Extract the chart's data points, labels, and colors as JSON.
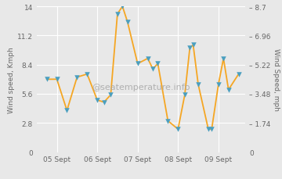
{
  "ylabel_left": "Wind speed, Kmph",
  "ylabel_right": "Wind Speed, mph",
  "watermark": "@seatemperature.info",
  "x_tick_labels": [
    "05 Sept",
    "06 Sept",
    "07 Sept",
    "08 Sept",
    "09 Sept"
  ],
  "x_tick_positions": [
    24,
    48,
    72,
    96,
    120
  ],
  "xlim": [
    12,
    136
  ],
  "points": [
    [
      18,
      7.0
    ],
    [
      24,
      7.0
    ],
    [
      30,
      4.0
    ],
    [
      36,
      7.2
    ],
    [
      42,
      7.5
    ],
    [
      48,
      5.0
    ],
    [
      52,
      4.8
    ],
    [
      56,
      5.5
    ],
    [
      60,
      13.3
    ],
    [
      63,
      14.0
    ],
    [
      66,
      12.5
    ],
    [
      72,
      8.5
    ],
    [
      78,
      9.0
    ],
    [
      81,
      8.0
    ],
    [
      84,
      8.5
    ],
    [
      90,
      3.0
    ],
    [
      96,
      2.2
    ],
    [
      100,
      5.5
    ],
    [
      103,
      10.0
    ],
    [
      105,
      10.3
    ],
    [
      108,
      6.5
    ],
    [
      114,
      2.2
    ],
    [
      116,
      2.2
    ],
    [
      120,
      6.5
    ],
    [
      123,
      9.0
    ],
    [
      126,
      6.0
    ],
    [
      132,
      7.5
    ]
  ],
  "line_color": "#f5a623",
  "marker_color": "#4a9fc0",
  "bg_color": "#e8e8e8",
  "grid_color": "#ffffff",
  "text_color": "#666666",
  "ylim": [
    0,
    14
  ],
  "yticks_left": [
    0,
    2.8,
    5.6,
    8.4,
    11.2,
    14
  ],
  "ytick_labels_left": [
    "0",
    "2.8",
    "5.6",
    "8.4",
    "11.2",
    "14"
  ],
  "ytick_labels_right": [
    "0",
    "– 1.74",
    "– 3.48",
    "– 5.22",
    "– 6.96",
    "– 8.7"
  ],
  "separator_color": "#cccccc",
  "tick_fontsize": 6.5,
  "ylabel_fontsize": 6.5,
  "watermark_fontsize": 8.0,
  "watermark_color": "#aaaaaa",
  "line_width": 1.3,
  "marker_size": 22
}
